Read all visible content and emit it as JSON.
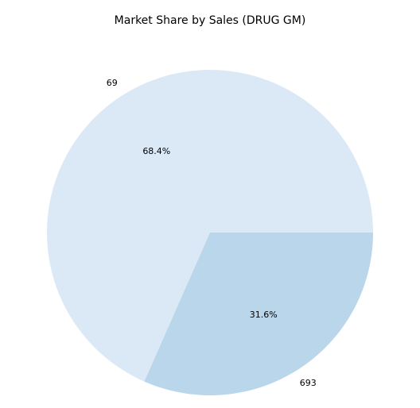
{
  "chart_data": {
    "type": "pie",
    "title": "Market Share by Sales (DRUG GM)",
    "slices": [
      {
        "label": "69",
        "value": 68.4,
        "pct_label": "68.4%",
        "color": "#dbe9f6"
      },
      {
        "label": "693",
        "value": 31.6,
        "pct_label": "31.6%",
        "color": "#bad6eb"
      }
    ]
  }
}
